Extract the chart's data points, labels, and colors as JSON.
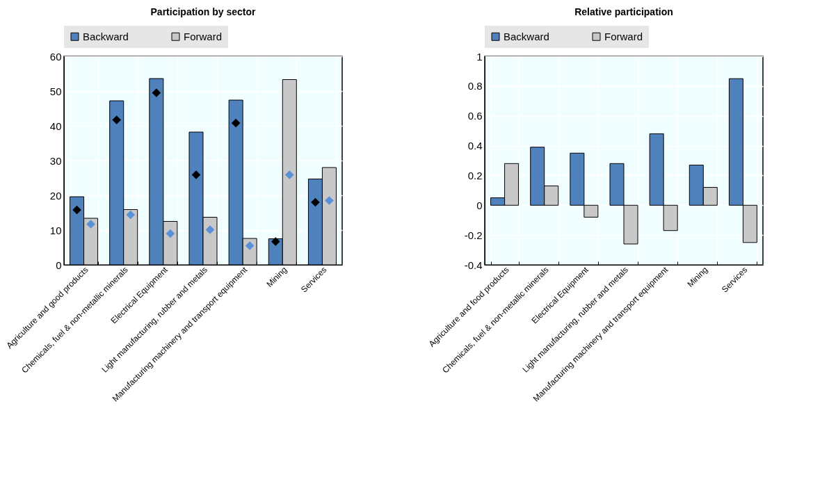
{
  "chart_data": [
    {
      "type": "bar",
      "title": "Participation by sector",
      "categories": [
        "Agriculture and good products",
        "Chemicals, fuel & non-metallic minerals",
        "Electrical Equipment",
        "Light manufacturing, rubber and metals",
        "Manufacturing machinery and transport equipment",
        "Mining",
        "Services"
      ],
      "series": [
        {
          "name": "Backward",
          "color": "#4f81bd",
          "values": [
            19.6,
            47.2,
            53.6,
            38.2,
            47.4,
            7.5,
            24.7
          ]
        },
        {
          "name": "Forward",
          "color": "#c8c8c8",
          "values": [
            13.4,
            15.9,
            12.5,
            13.7,
            7.6,
            53.3,
            28.0
          ]
        },
        {
          "type": "scatter",
          "color": "#000000",
          "marker": "diamond",
          "x": [
            "Agriculture and good products",
            "Chemicals, fuel & non-metallic minerals",
            "Electrical Equipment",
            "Light manufacturing, rubber and metals",
            "Manufacturing machinery and transport equipment",
            "Mining",
            "Services"
          ],
          "values": [
            15.8,
            41.7,
            49.5,
            25.9,
            40.8,
            6.7,
            18.0
          ]
        },
        {
          "type": "scatter",
          "color": "#5b8fd6",
          "marker": "diamond",
          "x": [
            "Agriculture and good products",
            "Chemicals, fuel & non-metallic minerals",
            "Electrical Equipment",
            "Light manufacturing, rubber and metals",
            "Manufacturing machinery and transport equipment",
            "Mining",
            "Services"
          ],
          "values": [
            11.7,
            14.4,
            9.0,
            10.1,
            5.5,
            25.9,
            18.5
          ]
        }
      ],
      "ylim": [
        0,
        60
      ],
      "yticks": [
        0,
        10,
        20,
        30,
        40,
        50,
        60
      ],
      "grid": true,
      "legend": "top"
    },
    {
      "type": "bar",
      "title": "Relative participation",
      "categories": [
        "Agriculture and food products",
        "Chemicals, fuel & non-metallic minerals",
        "Electrical Equipment",
        "Light manufacturing, rubber and metals",
        "Manufacturing machinery and transport equipment",
        "Mining",
        "Services"
      ],
      "series": [
        {
          "name": "Backward",
          "color": "#4f81bd",
          "values": [
            0.05,
            0.39,
            0.35,
            0.28,
            0.48,
            0.27,
            0.85
          ]
        },
        {
          "name": "Forward",
          "color": "#c8c8c8",
          "values": [
            0.28,
            0.13,
            -0.08,
            -0.26,
            -0.17,
            0.12,
            -0.25
          ]
        }
      ],
      "ylim": [
        -0.4,
        1
      ],
      "yticks": [
        -0.4,
        -0.2,
        0,
        0.2,
        0.4,
        0.6,
        0.8,
        1
      ],
      "grid": true,
      "legend": "top"
    }
  ]
}
